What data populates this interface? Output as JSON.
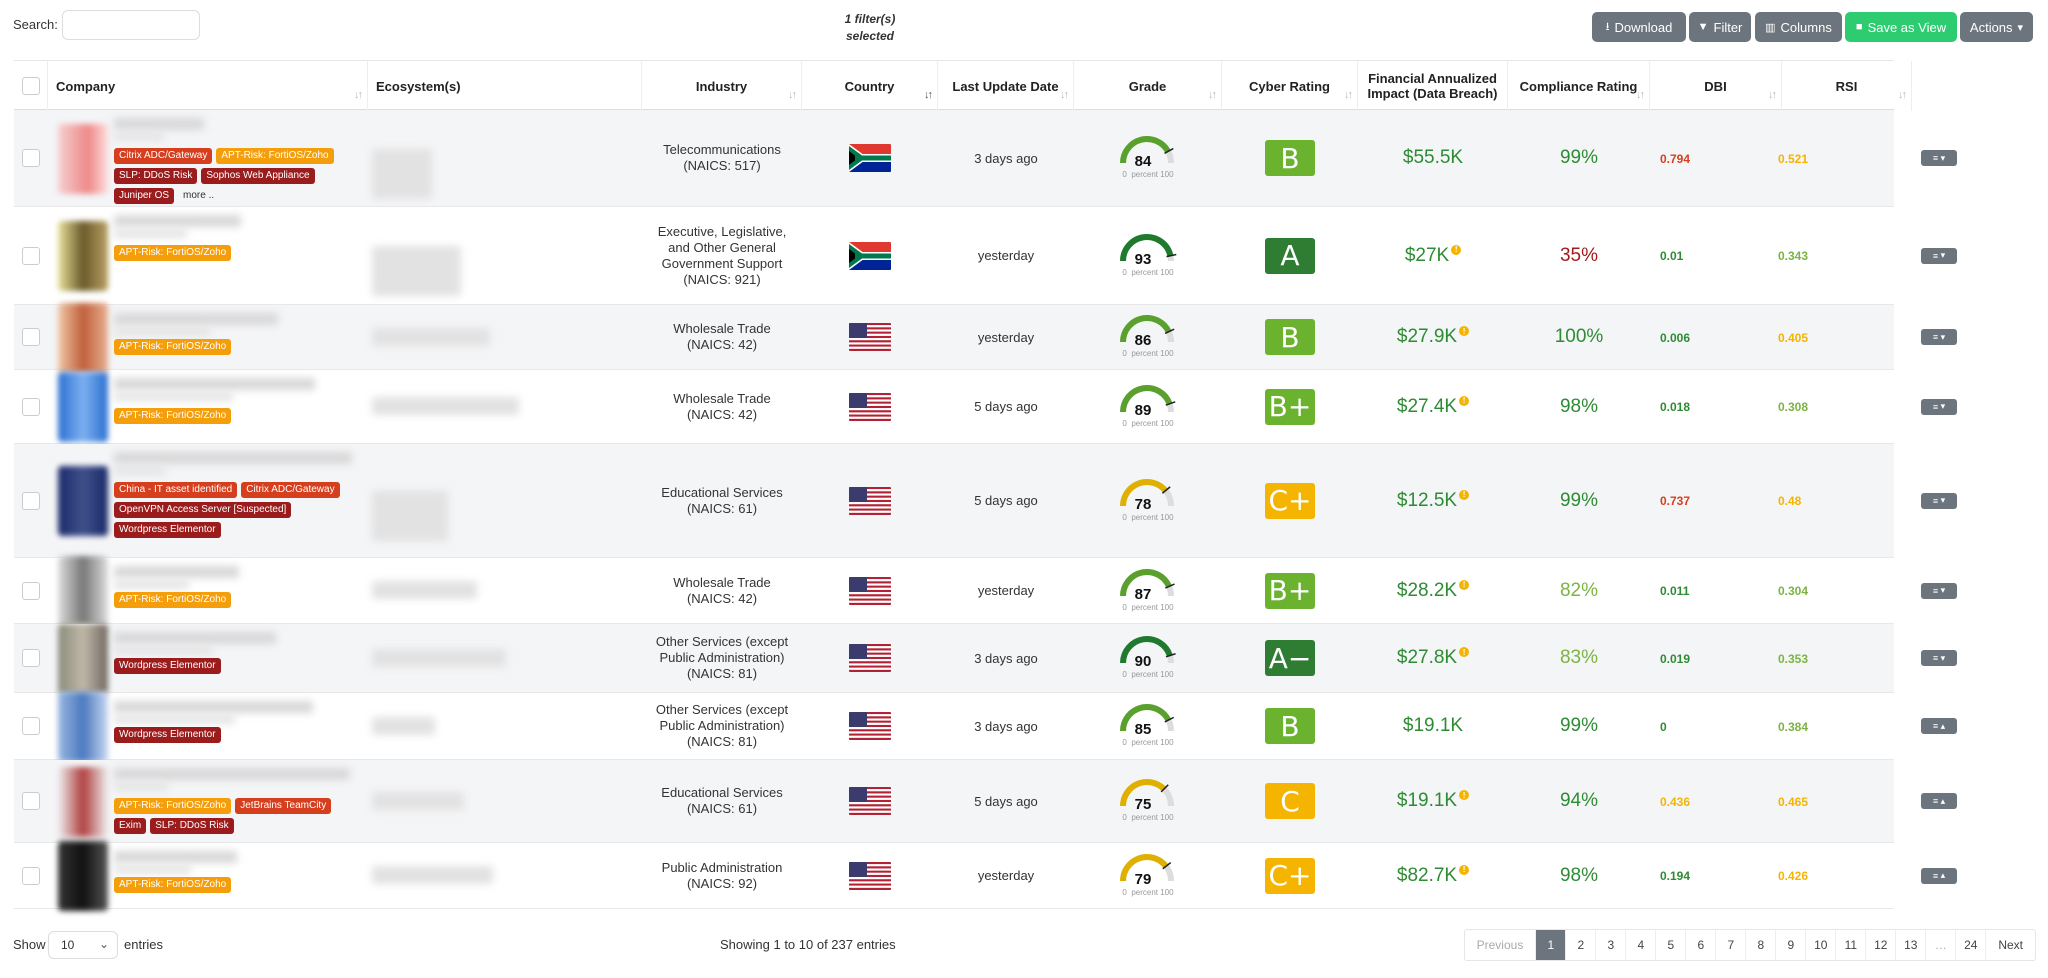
{
  "toolbar": {
    "search_label": "Search:",
    "search_value": "",
    "filter_line1": "1 filter(s)",
    "filter_line2": "selected",
    "download_label": "Download",
    "filter_label": "Filter",
    "columns_label": "Columns",
    "save_view_label": "Save as View",
    "actions_label": "Actions"
  },
  "columns": {
    "company": "Company",
    "ecosystems": "Ecosystem(s)",
    "industry": "Industry",
    "country": "Country",
    "last_update": "Last Update Date",
    "grade": "Grade",
    "cyber_rating": "Cyber Rating",
    "financial": "Financial Annualized Impact (Data Breach)",
    "compliance": "Compliance Rating",
    "dbi": "DBI",
    "rsi": "RSI"
  },
  "gauge_labels": {
    "min": "0",
    "unit": "percent",
    "max": "100"
  },
  "colors": {
    "green": "#2e8b34",
    "light_green": "#7cb342",
    "yellow": "#f5b400",
    "red": "#d63f1e",
    "dark_red": "#a01c1c",
    "grade_A": "#2e7d32",
    "grade_B": "#6bb22e",
    "grade_C": "#f5b400"
  },
  "rows": [
    {
      "tags": [
        [
          "Citrix ADC/Gateway",
          "red"
        ],
        [
          "APT-Risk: FortiOS/Zoho",
          "orange"
        ],
        [
          "SLP: DDoS Risk",
          "dark"
        ],
        [
          "Sophos Web Appliance",
          "dark"
        ],
        [
          "Juniper OS",
          "dark"
        ],
        [
          "more ..",
          "more"
        ]
      ],
      "industry": "Telecommunications (NAICS: 517)",
      "country": "ZA",
      "last_update": "3 days ago",
      "grade": "84",
      "grade_level": 84,
      "cyber_rating": "B",
      "rating_color": "#6bb22e",
      "financial": "$55.5K",
      "financial_info": false,
      "compliance": "99%",
      "compliance_color": "#2e8b34",
      "dbi": "0.794",
      "dbi_color": "#d63f1e",
      "rsi": "0.521",
      "rsi_color": "#f5b400",
      "caret": "down"
    },
    {
      "tags": [
        [
          "APT-Risk: FortiOS/Zoho",
          "orange"
        ]
      ],
      "industry": "Executive, Legislative, and Other General Government Support (NAICS: 921)",
      "country": "ZA",
      "last_update": "yesterday",
      "grade": "93",
      "grade_level": 93,
      "cyber_rating": "A",
      "rating_color": "#2e7d32",
      "financial": "$27K",
      "financial_info": true,
      "compliance": "35%",
      "compliance_color": "#a01c1c",
      "dbi": "0.01",
      "dbi_color": "#2e8b34",
      "rsi": "0.343",
      "rsi_color": "#7cb342",
      "caret": "down"
    },
    {
      "tags": [
        [
          "APT-Risk: FortiOS/Zoho",
          "orange"
        ]
      ],
      "industry": "Wholesale Trade (NAICS: 42)",
      "country": "US",
      "last_update": "yesterday",
      "grade": "86",
      "grade_level": 86,
      "cyber_rating": "B",
      "rating_color": "#6bb22e",
      "financial": "$27.9K",
      "financial_info": true,
      "compliance": "100%",
      "compliance_color": "#2e8b34",
      "dbi": "0.006",
      "dbi_color": "#2e8b34",
      "rsi": "0.405",
      "rsi_color": "#f5b400",
      "caret": "down"
    },
    {
      "tags": [
        [
          "APT-Risk: FortiOS/Zoho",
          "orange"
        ]
      ],
      "industry": "Wholesale Trade (NAICS: 42)",
      "country": "US",
      "last_update": "5 days ago",
      "grade": "89",
      "grade_level": 89,
      "cyber_rating": "B+",
      "rating_color": "#6bb22e",
      "financial": "$27.4K",
      "financial_info": true,
      "compliance": "98%",
      "compliance_color": "#2e8b34",
      "dbi": "0.018",
      "dbi_color": "#2e8b34",
      "rsi": "0.308",
      "rsi_color": "#7cb342",
      "caret": "down"
    },
    {
      "tags": [
        [
          "China - IT asset identified",
          "red"
        ],
        [
          "Citrix ADC/Gateway",
          "red"
        ],
        [
          "OpenVPN Access Server [Suspected]",
          "dark"
        ],
        [
          "Wordpress Elementor",
          "dark"
        ]
      ],
      "industry": "Educational Services (NAICS: 61)",
      "country": "US",
      "last_update": "5 days ago",
      "grade": "78",
      "grade_level": 78,
      "cyber_rating": "C+",
      "rating_color": "#f5b400",
      "financial": "$12.5K",
      "financial_info": true,
      "compliance": "99%",
      "compliance_color": "#2e8b34",
      "dbi": "0.737",
      "dbi_color": "#d63f1e",
      "rsi": "0.48",
      "rsi_color": "#f5b400",
      "caret": "down"
    },
    {
      "tags": [
        [
          "APT-Risk: FortiOS/Zoho",
          "orange"
        ]
      ],
      "industry": "Wholesale Trade (NAICS: 42)",
      "country": "US",
      "last_update": "yesterday",
      "grade": "87",
      "grade_level": 87,
      "cyber_rating": "B+",
      "rating_color": "#6bb22e",
      "financial": "$28.2K",
      "financial_info": true,
      "compliance": "82%",
      "compliance_color": "#7cb342",
      "dbi": "0.011",
      "dbi_color": "#2e8b34",
      "rsi": "0.304",
      "rsi_color": "#7cb342",
      "caret": "down"
    },
    {
      "tags": [
        [
          "Wordpress Elementor",
          "dark"
        ]
      ],
      "industry": "Other Services (except Public Administration) (NAICS: 81)",
      "country": "US",
      "last_update": "3 days ago",
      "grade": "90",
      "grade_level": 90,
      "cyber_rating": "A−",
      "rating_color": "#2e7d32",
      "financial": "$27.8K",
      "financial_info": true,
      "compliance": "83%",
      "compliance_color": "#7cb342",
      "dbi": "0.019",
      "dbi_color": "#2e8b34",
      "rsi": "0.353",
      "rsi_color": "#7cb342",
      "caret": "down"
    },
    {
      "tags": [
        [
          "Wordpress Elementor",
          "dark"
        ]
      ],
      "industry": "Other Services (except Public Administration) (NAICS: 81)",
      "country": "US",
      "last_update": "3 days ago",
      "grade": "85",
      "grade_level": 85,
      "cyber_rating": "B",
      "rating_color": "#6bb22e",
      "financial": "$19.1K",
      "financial_info": false,
      "compliance": "99%",
      "compliance_color": "#2e8b34",
      "dbi": "0",
      "dbi_color": "#2e8b34",
      "rsi": "0.384",
      "rsi_color": "#7cb342",
      "caret": "up"
    },
    {
      "tags": [
        [
          "APT-Risk: FortiOS/Zoho",
          "orange"
        ],
        [
          "JetBrains TeamCity",
          "red"
        ],
        [
          "Exim",
          "dark"
        ],
        [
          "SLP: DDoS Risk",
          "dark"
        ]
      ],
      "industry": "Educational Services (NAICS: 61)",
      "country": "US",
      "last_update": "5 days ago",
      "grade": "75",
      "grade_level": 75,
      "cyber_rating": "C",
      "rating_color": "#f5b400",
      "financial": "$19.1K",
      "financial_info": true,
      "compliance": "94%",
      "compliance_color": "#2e8b34",
      "dbi": "0.436",
      "dbi_color": "#f5b400",
      "rsi": "0.465",
      "rsi_color": "#f5b400",
      "caret": "up"
    },
    {
      "tags": [
        [
          "APT-Risk: FortiOS/Zoho",
          "orange"
        ]
      ],
      "industry": "Public Administration (NAICS: 92)",
      "country": "US",
      "last_update": "yesterday",
      "grade": "79",
      "grade_level": 79,
      "cyber_rating": "C+",
      "rating_color": "#f5b400",
      "financial": "$82.7K",
      "financial_info": true,
      "compliance": "98%",
      "compliance_color": "#2e8b34",
      "dbi": "0.194",
      "dbi_color": "#2e8b34",
      "rsi": "0.426",
      "rsi_color": "#f5b400",
      "caret": "up"
    }
  ],
  "footer": {
    "show_label": "Show",
    "page_size": "10",
    "entries_label": "entries",
    "showing_text": "Showing 1 to 10 of 237 entries",
    "pages": [
      "Previous",
      "1",
      "2",
      "3",
      "4",
      "5",
      "6",
      "7",
      "8",
      "9",
      "10",
      "11",
      "12",
      "13",
      "…",
      "24",
      "Next"
    ],
    "active_page": "1"
  }
}
